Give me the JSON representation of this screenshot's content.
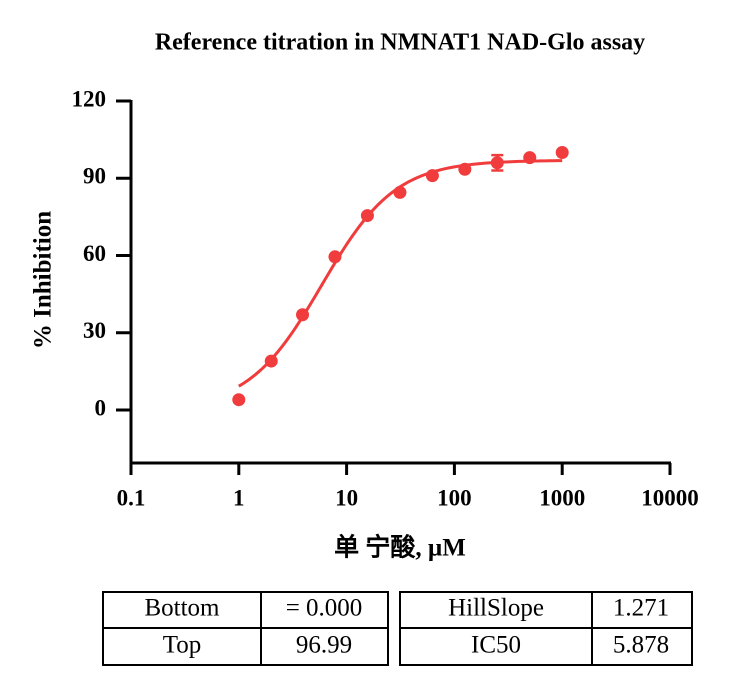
{
  "chart_data": {
    "type": "scatter",
    "title": "Reference titration in NMNAT1 NAD-Glo assay",
    "x_label": "单 宁酸, µM",
    "y_label": "% Inhibition",
    "x": [
      1,
      2,
      3.9,
      7.8,
      15.6,
      31.25,
      62.5,
      125,
      250,
      500,
      1000
    ],
    "values": [
      4,
      19,
      37,
      59.5,
      75.5,
      84.5,
      91,
      93.5,
      96,
      98,
      100
    ],
    "errors": [
      null,
      null,
      null,
      null,
      null,
      null,
      null,
      null,
      3,
      null,
      null
    ],
    "color": "#f03c3c",
    "x_log": true,
    "xlim": [
      0.1,
      10000
    ],
    "xticks": [
      0.1,
      1,
      10,
      100,
      1000,
      10000
    ],
    "ylim": [
      -20,
      120
    ],
    "yticks": [
      0,
      30,
      60,
      90,
      120
    ]
  },
  "tables": [
    {
      "rows": [
        [
          "Bottom",
          {
            "value": 0,
            "label": "= 0.000"
          }
        ],
        [
          "Top",
          96.99
        ]
      ]
    },
    {
      "rows": [
        [
          "HillSlope",
          1.271
        ],
        [
          "IC50",
          5.878
        ]
      ]
    }
  ]
}
